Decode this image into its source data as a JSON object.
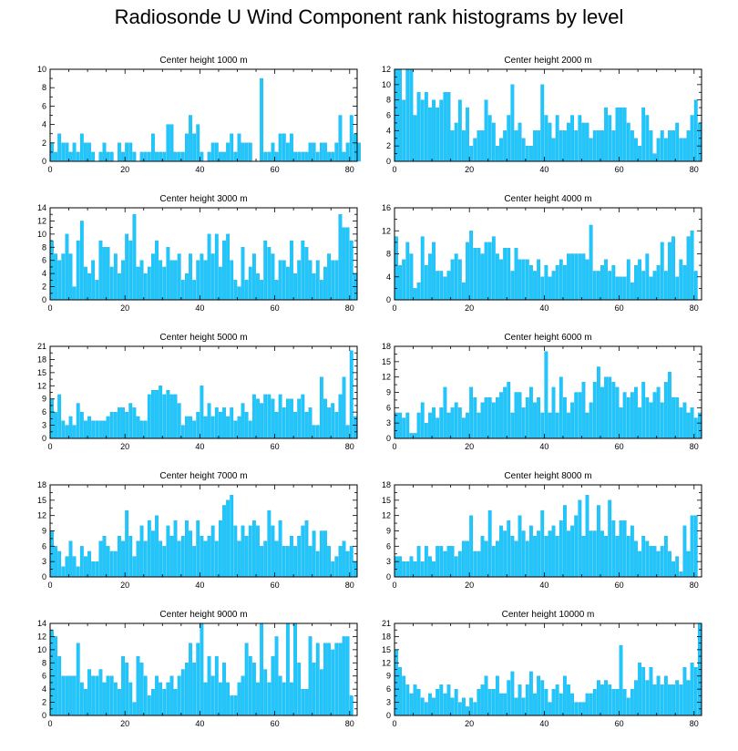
{
  "title": "Radiosonde U Wind Component rank histograms by level",
  "colors": {
    "bar": "#1ec8ff",
    "bar_edge": "#0aa0d6",
    "axis": "#000000"
  },
  "chart_data": [
    {
      "type": "bar",
      "title": "Center height 1000 m",
      "xlabel": "",
      "ylabel": "",
      "xlim": [
        0,
        82
      ],
      "ylim": [
        0,
        10
      ],
      "yticks": [
        0,
        2,
        4,
        6,
        8,
        10
      ],
      "xticks": [
        0,
        20,
        40,
        60,
        80
      ],
      "values": [
        2,
        1,
        3,
        2,
        2,
        1,
        2,
        1,
        3,
        2,
        2,
        1,
        0,
        1,
        2,
        1,
        1,
        0,
        2,
        1,
        2,
        2,
        1,
        0,
        1,
        1,
        1,
        3,
        1,
        1,
        1,
        4,
        4,
        1,
        1,
        1,
        3,
        5,
        3,
        4,
        1,
        0,
        1,
        2,
        2,
        1,
        1,
        2,
        3,
        1,
        3,
        2,
        2,
        2,
        0,
        0,
        9,
        1,
        1,
        2,
        1,
        3,
        3,
        2,
        3,
        1,
        1,
        1,
        1,
        2,
        2,
        1,
        2,
        2,
        1,
        1,
        2,
        5,
        1,
        2,
        5,
        3,
        2
      ]
    },
    {
      "type": "bar",
      "title": "Center height 2000 m",
      "xlabel": "",
      "ylabel": "",
      "xlim": [
        0,
        82
      ],
      "ylim": [
        0,
        12
      ],
      "yticks": [
        0,
        2,
        4,
        6,
        8,
        10,
        12
      ],
      "xticks": [
        0,
        20,
        40,
        60,
        80
      ],
      "values": [
        12,
        12,
        8,
        12,
        12,
        6,
        9,
        8,
        9,
        7,
        8,
        7,
        8,
        9,
        9,
        4,
        5,
        8,
        4,
        7,
        2,
        3,
        4,
        4,
        8,
        6,
        5,
        2,
        3,
        4,
        6,
        10,
        4,
        5,
        3,
        2,
        2,
        4,
        4,
        10,
        6,
        5,
        3,
        6,
        4,
        4,
        5,
        6,
        4,
        6,
        5,
        5,
        3,
        4,
        4,
        4,
        7,
        6,
        4,
        7,
        7,
        7,
        5,
        4,
        3,
        2,
        7,
        6,
        4,
        1,
        3,
        4,
        3,
        4,
        4,
        5,
        3,
        3,
        4,
        6,
        8,
        5
      ]
    },
    {
      "type": "bar",
      "title": "Center height 3000 m",
      "xlabel": "",
      "ylabel": "",
      "xlim": [
        0,
        82
      ],
      "ylim": [
        0,
        14
      ],
      "yticks": [
        0,
        2,
        4,
        6,
        8,
        10,
        12,
        14
      ],
      "xticks": [
        0,
        20,
        40,
        60,
        80
      ],
      "values": [
        9,
        7,
        6,
        7,
        10,
        7,
        2,
        9,
        12,
        5,
        4,
        6,
        3,
        9,
        8,
        8,
        5,
        7,
        4,
        6,
        10,
        9,
        13,
        5,
        6,
        4,
        5,
        7,
        9,
        6,
        5,
        8,
        6,
        6,
        7,
        3,
        4,
        7,
        3,
        6,
        7,
        6,
        10,
        7,
        10,
        5,
        9,
        10,
        6,
        3,
        2,
        8,
        3,
        5,
        7,
        4,
        3,
        9,
        8,
        7,
        3,
        6,
        6,
        5,
        9,
        4,
        6,
        9,
        8,
        6,
        4,
        6,
        3,
        5,
        7,
        6,
        6,
        13,
        11,
        11,
        9,
        4
      ]
    },
    {
      "type": "bar",
      "title": "Center height 4000 m",
      "xlabel": "",
      "ylabel": "",
      "xlim": [
        0,
        82
      ],
      "ylim": [
        0,
        16
      ],
      "yticks": [
        0,
        4,
        8,
        12,
        16
      ],
      "xticks": [
        0,
        20,
        40,
        60,
        80
      ],
      "values": [
        11,
        6,
        7,
        10,
        8,
        2,
        3,
        11,
        6,
        8,
        10,
        5,
        5,
        4,
        5,
        7,
        8,
        7,
        3,
        10,
        12,
        9,
        9,
        8,
        10,
        10,
        11,
        8,
        7,
        9,
        9,
        5,
        9,
        7,
        7,
        7,
        6,
        5,
        7,
        4,
        6,
        4,
        5,
        6,
        7,
        6,
        8,
        8,
        8,
        8,
        8,
        7,
        13,
        5,
        5,
        6,
        7,
        5,
        6,
        4,
        4,
        4,
        7,
        3,
        6,
        7,
        5,
        8,
        4,
        5,
        6,
        10,
        5,
        10,
        11,
        4,
        7,
        6,
        11,
        12,
        5
      ]
    },
    {
      "type": "bar",
      "title": "Center height 5000 m",
      "xlabel": "",
      "ylabel": "",
      "xlim": [
        0,
        82
      ],
      "ylim": [
        0,
        21
      ],
      "yticks": [
        0,
        3,
        6,
        9,
        12,
        15,
        18,
        21
      ],
      "xticks": [
        0,
        20,
        40,
        60,
        80
      ],
      "values": [
        9,
        6,
        10,
        4,
        3,
        5,
        3,
        8,
        6,
        4,
        5,
        4,
        4,
        4,
        4,
        5,
        6,
        6,
        7,
        7,
        6,
        8,
        7,
        5,
        4,
        4,
        10,
        11,
        11,
        12,
        10,
        11,
        10,
        10,
        8,
        3,
        5,
        5,
        4,
        6,
        12,
        5,
        8,
        5,
        7,
        6,
        7,
        5,
        7,
        4,
        5,
        8,
        6,
        4,
        10,
        9,
        8,
        10,
        10,
        9,
        6,
        10,
        7,
        9,
        9,
        6,
        9,
        10,
        6,
        7,
        3,
        3,
        14,
        9,
        7,
        8,
        6,
        10,
        14,
        3,
        20,
        5
      ]
    },
    {
      "type": "bar",
      "title": "Center height 6000 m",
      "xlabel": "",
      "ylabel": "",
      "xlim": [
        0,
        82
      ],
      "ylim": [
        0,
        18
      ],
      "yticks": [
        0,
        3,
        6,
        9,
        12,
        15,
        18
      ],
      "xticks": [
        0,
        20,
        40,
        60,
        80
      ],
      "values": [
        5,
        5,
        4,
        5,
        1,
        1,
        5,
        7,
        3,
        5,
        6,
        4,
        6,
        10,
        5,
        6,
        7,
        6,
        4,
        5,
        10,
        8,
        5,
        7,
        8,
        8,
        7,
        8,
        9,
        10,
        11,
        5,
        9,
        9,
        6,
        8,
        10,
        7,
        8,
        5,
        17,
        5,
        10,
        5,
        12,
        8,
        5,
        7,
        9,
        9,
        11,
        5,
        7,
        11,
        14,
        10,
        12,
        12,
        11,
        10,
        6,
        9,
        8,
        9,
        10,
        6,
        11,
        8,
        7,
        9,
        10,
        7,
        11,
        13,
        8,
        8,
        6,
        7,
        5,
        6,
        4,
        5
      ]
    },
    {
      "type": "bar",
      "title": "Center height 7000 m",
      "xlabel": "",
      "ylabel": "",
      "xlim": [
        0,
        82
      ],
      "ylim": [
        0,
        18
      ],
      "yticks": [
        0,
        3,
        6,
        9,
        12,
        15,
        18
      ],
      "xticks": [
        0,
        20,
        40,
        60,
        80
      ],
      "values": [
        9,
        6,
        5,
        2,
        4,
        7,
        4,
        2,
        6,
        4,
        5,
        3,
        3,
        7,
        8,
        6,
        5,
        5,
        8,
        7,
        13,
        8,
        4,
        7,
        10,
        7,
        11,
        9,
        12,
        7,
        6,
        10,
        8,
        11,
        7,
        8,
        11,
        9,
        6,
        11,
        8,
        7,
        8,
        10,
        7,
        11,
        14,
        15,
        16,
        10,
        7,
        10,
        8,
        10,
        11,
        10,
        6,
        7,
        13,
        10,
        7,
        11,
        6,
        6,
        8,
        6,
        8,
        10,
        11,
        6,
        9,
        5,
        9,
        9,
        6,
        3,
        4,
        6,
        7,
        5,
        6,
        3
      ]
    },
    {
      "type": "bar",
      "title": "Center height 8000 m",
      "xlabel": "",
      "ylabel": "",
      "xlim": [
        0,
        82
      ],
      "ylim": [
        0,
        18
      ],
      "yticks": [
        0,
        3,
        6,
        9,
        12,
        15,
        18
      ],
      "xticks": [
        0,
        20,
        40,
        60,
        80
      ],
      "values": [
        4,
        4,
        3,
        3,
        4,
        3,
        6,
        3,
        6,
        4,
        3,
        6,
        6,
        5,
        6,
        6,
        4,
        5,
        7,
        7,
        12,
        5,
        5,
        8,
        7,
        13,
        6,
        7,
        10,
        9,
        11,
        8,
        7,
        12,
        9,
        7,
        10,
        8,
        9,
        13,
        8,
        9,
        10,
        8,
        11,
        14,
        9,
        10,
        12,
        15,
        8,
        16,
        9,
        9,
        14,
        9,
        8,
        15,
        11,
        8,
        11,
        11,
        8,
        10,
        7,
        5,
        8,
        7,
        6,
        6,
        5,
        6,
        8,
        5,
        3,
        4,
        1,
        10,
        5,
        12,
        12
      ]
    },
    {
      "type": "bar",
      "title": "Center height 9000 m",
      "xlabel": "",
      "ylabel": "",
      "xlim": [
        0,
        82
      ],
      "ylim": [
        0,
        14
      ],
      "yticks": [
        0,
        2,
        4,
        6,
        8,
        10,
        12,
        14
      ],
      "xticks": [
        0,
        20,
        40,
        60,
        80
      ],
      "values": [
        13,
        12,
        9,
        6,
        6,
        6,
        6,
        11,
        5,
        4,
        7,
        6,
        6,
        7,
        5,
        6,
        6,
        5,
        4,
        9,
        8,
        5,
        2,
        9,
        8,
        6,
        3,
        4,
        6,
        5,
        4,
        5,
        6,
        4,
        6,
        7,
        8,
        11,
        8,
        11,
        14,
        5,
        9,
        6,
        9,
        5,
        8,
        5,
        3,
        3,
        5,
        6,
        11,
        9,
        8,
        5,
        14,
        7,
        5,
        9,
        12,
        6,
        5,
        14,
        5,
        14,
        8,
        4,
        4,
        12,
        8,
        11,
        7,
        11,
        11,
        10,
        11,
        11,
        12,
        12,
        3
      ]
    },
    {
      "type": "bar",
      "title": "Center height 10000 m",
      "xlabel": "",
      "ylabel": "",
      "xlim": [
        0,
        82
      ],
      "ylim": [
        0,
        21
      ],
      "yticks": [
        0,
        3,
        6,
        9,
        12,
        15,
        18,
        21
      ],
      "xticks": [
        0,
        20,
        40,
        60,
        80
      ],
      "values": [
        15,
        11,
        9,
        7,
        5,
        7,
        6,
        4,
        3,
        5,
        4,
        6,
        7,
        5,
        7,
        4,
        6,
        3,
        4,
        2,
        4,
        3,
        6,
        7,
        9,
        6,
        6,
        9,
        5,
        5,
        8,
        10,
        4,
        7,
        4,
        7,
        10,
        5,
        9,
        8,
        6,
        3,
        6,
        7,
        5,
        9,
        7,
        5,
        3,
        3,
        3,
        5,
        5,
        6,
        8,
        7,
        8,
        7,
        6,
        6,
        16,
        6,
        4,
        6,
        8,
        12,
        11,
        8,
        11,
        7,
        9,
        7,
        9,
        7,
        7,
        8,
        7,
        11,
        8,
        12,
        11,
        21
      ]
    }
  ]
}
